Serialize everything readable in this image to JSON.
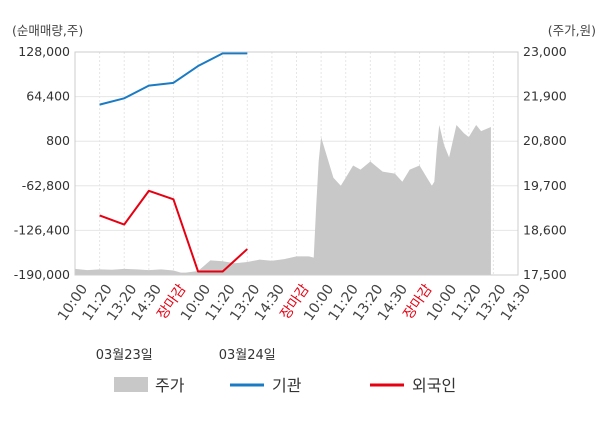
{
  "chart_data": {
    "type": "line",
    "left_axis": {
      "unit_label": "(순매매량,주)",
      "ticks": [
        "128,000",
        "64,400",
        "800",
        "-62,800",
        "-126,400",
        "-190,000"
      ],
      "tick_values": [
        128000,
        64400,
        800,
        -62800,
        -126400,
        -190000
      ],
      "range": [
        -190000,
        128000
      ]
    },
    "right_axis": {
      "unit_label": "(주가,원)",
      "ticks": [
        "23,000",
        "21,900",
        "20,800",
        "19,700",
        "18,600",
        "17,500"
      ],
      "tick_values": [
        23000,
        21900,
        20800,
        19700,
        18600,
        17500
      ],
      "range": [
        17500,
        23000
      ]
    },
    "x_ticks": [
      "10:00",
      "11:20",
      "13:20",
      "14:30",
      "장마감",
      "10:00",
      "11:20",
      "13:20",
      "14:30",
      "장마감",
      "10:00",
      "11:20",
      "13:20",
      "14:30",
      "장마감",
      "10:00",
      "11:20",
      "13:20",
      "14:30"
    ],
    "dates": [
      "03월23일",
      "03월24일"
    ],
    "series": [
      {
        "name": "주가",
        "kind": "area",
        "color": "#c8c8c8",
        "x": [
          0,
          0.5,
          1,
          1.5,
          2,
          2.5,
          3,
          3.5,
          4,
          4.3,
          4.5,
          5,
          5.5,
          6,
          6.5,
          7,
          7.5,
          8,
          8.5,
          9,
          9.5,
          9.7,
          9.8,
          9.9,
          10,
          10.2,
          10.5,
          10.8,
          11,
          11.3,
          11.6,
          12,
          12.5,
          13,
          13.3,
          13.6,
          14,
          14.3,
          14.5,
          14.6,
          14.7,
          14.8,
          15,
          15.2,
          15.5,
          15.8,
          16,
          16.3,
          16.5,
          16.9
        ],
        "values": [
          17650,
          17620,
          17640,
          17630,
          17650,
          17640,
          17620,
          17640,
          17610,
          17560,
          17560,
          17600,
          17860,
          17840,
          17790,
          17820,
          17880,
          17850,
          17890,
          17960,
          17960,
          17930,
          19200,
          20300,
          20900,
          20500,
          19900,
          19700,
          19900,
          20200,
          20100,
          20300,
          20050,
          20000,
          19800,
          20100,
          20200,
          19900,
          19700,
          19800,
          20600,
          21200,
          20700,
          20400,
          21200,
          21000,
          20900,
          21200,
          21050,
          21150
        ]
      },
      {
        "name": "기관",
        "kind": "line",
        "color": "#1a7bc4",
        "x": [
          1,
          2,
          3,
          4,
          5,
          6,
          7
        ],
        "values": [
          53000,
          62000,
          80000,
          84000,
          108000,
          126000,
          126000
        ]
      },
      {
        "name": "외국인",
        "kind": "line",
        "color": "#e60012",
        "x": [
          1,
          2,
          3,
          4,
          5,
          6,
          7
        ],
        "values": [
          -105000,
          -118000,
          -70000,
          -82000,
          -185000,
          -185000,
          -153000
        ]
      }
    ],
    "legend": [
      "주가",
      "기관",
      "외국인"
    ],
    "legend_position": "bottom",
    "grid": true
  }
}
